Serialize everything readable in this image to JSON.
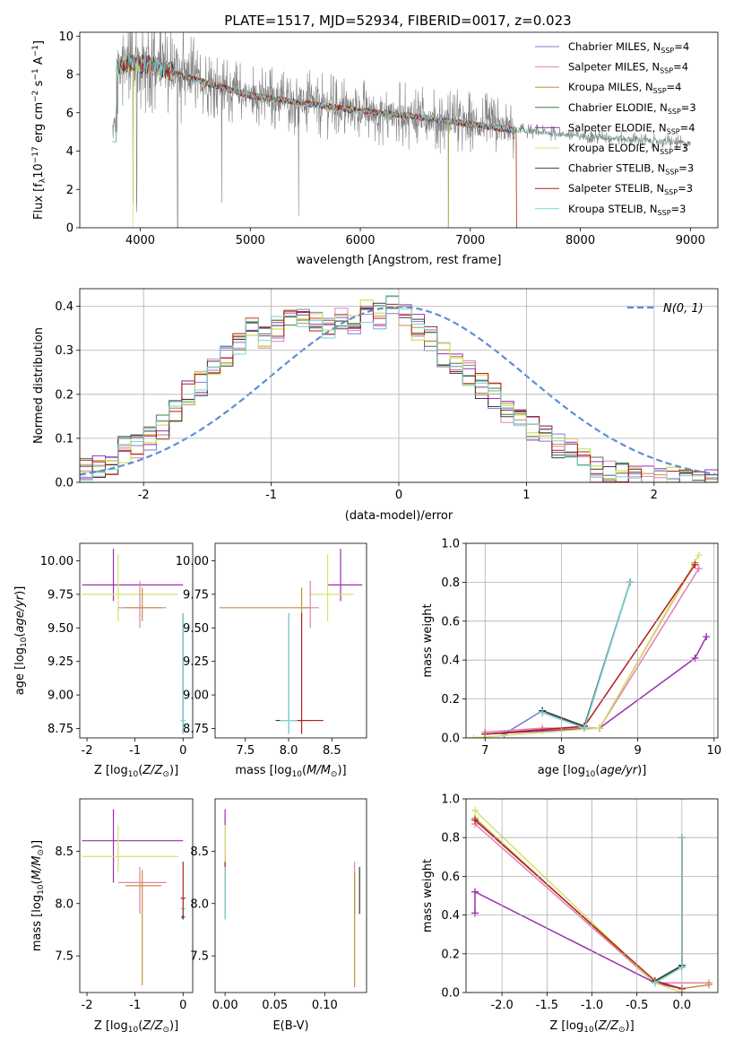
{
  "figure_title": "PLATE=1517, MJD=52934, FIBERID=0017, z=0.023",
  "legend": [
    {
      "label": "Chabrier MILES, N",
      "sub": "SSP",
      "suffix": "=4",
      "color": "#7b7fd0"
    },
    {
      "label": "Salpeter MILES, N",
      "sub": "SSP",
      "suffix": "=4",
      "color": "#e47fb3"
    },
    {
      "label": "Kroupa MILES, N",
      "sub": "SSP",
      "suffix": "=4",
      "color": "#c3923a"
    },
    {
      "label": "Chabrier ELODIE, N",
      "sub": "SSP",
      "suffix": "=3",
      "color": "#3f7f3f"
    },
    {
      "label": "Salpeter ELODIE, N",
      "sub": "SSP",
      "suffix": "=4",
      "color": "#9b2fb0"
    },
    {
      "label": "Kroupa ELODIE, N",
      "sub": "SSP",
      "suffix": "=3",
      "color": "#d6e26b"
    },
    {
      "label": "Chabrier STELIB, N",
      "sub": "SSP",
      "suffix": "=3",
      "color": "#3a3a3a"
    },
    {
      "label": "Salpeter STELIB, N",
      "sub": "SSP",
      "suffix": "=3",
      "color": "#b01f1f"
    },
    {
      "label": "Kroupa STELIB, N",
      "sub": "SSP",
      "suffix": "=3",
      "color": "#79d4d6"
    }
  ],
  "chart_data": [
    {
      "id": "spectrum",
      "type": "line",
      "xlabel": "wavelength [Angstrom, rest frame]",
      "ylabel": "Flux [f",
      "xlim": [
        3450,
        9250
      ],
      "ylim": [
        0,
        10.2
      ],
      "xticks": [
        4000,
        5000,
        6000,
        7000,
        8000,
        9000
      ],
      "yticks": [
        0,
        2,
        4,
        6,
        8,
        10
      ],
      "data_color": "#808080",
      "data_range": [
        3750,
        9000
      ],
      "model_range": [
        3750,
        7420
      ],
      "continuum": [
        [
          3750,
          8.3
        ],
        [
          3900,
          8.6
        ],
        [
          4100,
          8.5
        ],
        [
          4400,
          7.9
        ],
        [
          5000,
          6.9
        ],
        [
          5500,
          6.5
        ],
        [
          6000,
          6.1
        ],
        [
          6500,
          5.8
        ],
        [
          7000,
          5.4
        ],
        [
          7400,
          5.1
        ],
        [
          8000,
          4.8
        ],
        [
          8500,
          4.6
        ],
        [
          9000,
          4.4
        ]
      ],
      "grid": false
    },
    {
      "id": "residuals",
      "type": "histogram",
      "xlabel": "(data-model)/error",
      "ylabel": "Normed distribution",
      "xlim": [
        -2.5,
        2.5
      ],
      "ylim": [
        0,
        0.44
      ],
      "xticks": [
        -2,
        -1,
        0,
        1,
        2
      ],
      "yticks": [
        0.0,
        0.1,
        0.2,
        0.3,
        0.4
      ],
      "bin_width": 0.1,
      "bin_start": -2.5,
      "base_heights": [
        0.025,
        0.03,
        0.035,
        0.035,
        0.04,
        0.045,
        0.075,
        0.075,
        0.085,
        0.085,
        0.095,
        0.105,
        0.12,
        0.13,
        0.15,
        0.165,
        0.19,
        0.215,
        0.23,
        0.215,
        0.26,
        0.255,
        0.275,
        0.29,
        0.31,
        0.33,
        0.35,
        0.36,
        0.345,
        0.32,
        0.33,
        0.37,
        0.395,
        0.355,
        0.365,
        0.38,
        0.37,
        0.355,
        0.33,
        0.375,
        0.35,
        0.395,
        0.335,
        0.39,
        0.395,
        0.38,
        0.355,
        0.4,
        0.405,
        0.39,
        0.375,
        0.38,
        0.345,
        0.36,
        0.33,
        0.32,
        0.305,
        0.28,
        0.29,
        0.25,
        0.23,
        0.265,
        0.235,
        0.2,
        0.205,
        0.19,
        0.17,
        0.16,
        0.15,
        0.15,
        0.13,
        0.115,
        0.12,
        0.085,
        0.09,
        0.08,
        0.08,
        0.06,
        0.055,
        0.04,
        0.035,
        0.025,
        0.03,
        0.02,
        0.015,
        0.02,
        0.015,
        0.01,
        0.01,
        0.015,
        0.01,
        0.005,
        0.01,
        0.005,
        0.005,
        0.005,
        0.0,
        0.005,
        0.0,
        0.0
      ],
      "normal_curve": {
        "label": "N(0, 1)",
        "color": "#5b8ed6",
        "mu": 0,
        "sigma": 1
      },
      "grid": true
    },
    {
      "id": "age-vs-Z",
      "type": "errorbar",
      "xlabel": "Z [log",
      "ylabel": "age  [log",
      "xlim": [
        -2.15,
        0.2
      ],
      "ylim": [
        8.68,
        10.13
      ],
      "xticks": [
        -2,
        -1,
        0
      ],
      "yticks": [
        8.75,
        9.0,
        9.25,
        9.5,
        9.75,
        10.0
      ],
      "points": [
        {
          "x": -1.45,
          "y": 9.82,
          "xerr": [
            0.65,
            1.45
          ],
          "yerr": [
            0.12,
            0.27
          ],
          "color": "#9b2fb0"
        },
        {
          "x": -1.35,
          "y": 9.75,
          "xerr": [
            0.75,
            1.25
          ],
          "yerr": [
            0.2,
            0.3
          ],
          "color": "#d6e26b"
        },
        {
          "x": -0.9,
          "y": 9.65,
          "xerr": [
            0.45,
            0.55
          ],
          "yerr": [
            0.15,
            0.2
          ],
          "color": "#e47fb3"
        },
        {
          "x": -0.85,
          "y": 9.65,
          "xerr": [
            0.35,
            0.4
          ],
          "yerr": [
            0.1,
            0.15
          ],
          "color": "#c3923a"
        },
        {
          "x": 0.0,
          "y": 8.81,
          "xerr": [
            0.02,
            0.02
          ],
          "yerr": [
            0.1,
            0.8
          ],
          "color": "#3a3a3a"
        },
        {
          "x": 0.0,
          "y": 8.81,
          "xerr": [
            0.05,
            0.05
          ],
          "yerr": [
            0.1,
            0.8
          ],
          "color": "#79d4d6"
        }
      ],
      "grid": false
    },
    {
      "id": "age-vs-mass",
      "type": "errorbar",
      "xlabel": "mass [log",
      "ylabel": "",
      "xlim": [
        7.15,
        8.9
      ],
      "ylim": [
        8.68,
        10.13
      ],
      "xticks": [
        7.5,
        8.0,
        8.5
      ],
      "yticks": [
        8.75,
        9.0,
        9.25,
        9.5,
        9.75,
        10.0
      ],
      "points": [
        {
          "x": 8.6,
          "y": 9.82,
          "xerr": [
            0.15,
            0.25
          ],
          "yerr": [
            0.12,
            0.27
          ],
          "color": "#9b2fb0"
        },
        {
          "x": 8.45,
          "y": 9.75,
          "xerr": [
            0.2,
            0.3
          ],
          "yerr": [
            0.2,
            0.3
          ],
          "color": "#d6e26b"
        },
        {
          "x": 8.25,
          "y": 9.65,
          "xerr": [
            0.1,
            0.1
          ],
          "yerr": [
            0.15,
            0.2
          ],
          "color": "#e47fb3"
        },
        {
          "x": 8.15,
          "y": 9.65,
          "xerr": [
            0.95,
            0.1
          ],
          "yerr": [
            0.1,
            0.15
          ],
          "color": "#c3923a"
        },
        {
          "x": 8.0,
          "y": 8.81,
          "xerr": [
            0.15,
            0.25
          ],
          "yerr": [
            0.1,
            0.8
          ],
          "color": "#3a3a3a"
        },
        {
          "x": 8.15,
          "y": 8.81,
          "xerr": [
            0.1,
            0.25
          ],
          "yerr": [
            0.1,
            0.8
          ],
          "color": "#b01f1f"
        },
        {
          "x": 8.0,
          "y": 8.81,
          "xerr": [
            0.1,
            0.1
          ],
          "yerr": [
            0.1,
            0.8
          ],
          "color": "#79d4d6"
        }
      ],
      "grid": false
    },
    {
      "id": "massweight-vs-age",
      "type": "line",
      "xlabel": "age  [log",
      "ylabel": "mass weight",
      "xlim": [
        6.75,
        10.05
      ],
      "ylim": [
        0,
        1.0
      ],
      "xticks": [
        7,
        8,
        9,
        10
      ],
      "yticks": [
        0.0,
        0.2,
        0.4,
        0.6,
        0.8,
        1.0
      ],
      "series": [
        {
          "color": "#7b7fd0",
          "x": [
            7.25,
            7.75,
            8.3,
            8.9
          ],
          "y": [
            0.02,
            0.14,
            0.05,
            0.8
          ]
        },
        {
          "color": "#e47fb3",
          "x": [
            7.0,
            7.75,
            8.5,
            9.8
          ],
          "y": [
            0.03,
            0.05,
            0.05,
            0.87
          ]
        },
        {
          "color": "#c3923a",
          "x": [
            7.0,
            7.75,
            8.5,
            9.75
          ],
          "y": [
            0.02,
            0.04,
            0.05,
            0.9
          ]
        },
        {
          "color": "#3f7f3f",
          "x": [
            7.75,
            8.3,
            8.9
          ],
          "y": [
            0.13,
            0.06,
            0.8
          ]
        },
        {
          "color": "#9b2fb0",
          "x": [
            7.0,
            8.5,
            9.75,
            9.9
          ],
          "y": [
            0.02,
            0.05,
            0.41,
            0.52
          ]
        },
        {
          "color": "#d6e26b",
          "x": [
            6.85,
            8.5,
            9.8
          ],
          "y": [
            0.0,
            0.05,
            0.94
          ]
        },
        {
          "color": "#3a3a3a",
          "x": [
            7.75,
            8.3,
            8.9
          ],
          "y": [
            0.14,
            0.06,
            0.8
          ]
        },
        {
          "color": "#b01f1f",
          "x": [
            7.0,
            8.3,
            9.75
          ],
          "y": [
            0.02,
            0.06,
            0.89
          ]
        },
        {
          "color": "#79d4d6",
          "x": [
            7.75,
            8.3,
            8.9
          ],
          "y": [
            0.13,
            0.05,
            0.8
          ]
        }
      ],
      "grid": true
    },
    {
      "id": "mass-vs-Z",
      "type": "errorbar",
      "xlabel": "Z [log",
      "ylabel": "mass [log",
      "xlim": [
        -2.15,
        0.2
      ],
      "ylim": [
        7.15,
        9.0
      ],
      "xticks": [
        -2,
        -1,
        0
      ],
      "yticks": [
        7.5,
        8.0,
        8.5
      ],
      "points": [
        {
          "x": -1.45,
          "y": 8.6,
          "xerr": [
            0.65,
            1.45
          ],
          "yerr": [
            0.4,
            0.3
          ],
          "color": "#9b2fb0"
        },
        {
          "x": -1.35,
          "y": 8.45,
          "xerr": [
            0.75,
            1.25
          ],
          "yerr": [
            0.15,
            0.3
          ],
          "color": "#d6e26b"
        },
        {
          "x": -0.9,
          "y": 8.2,
          "xerr": [
            0.45,
            0.55
          ],
          "yerr": [
            0.3,
            0.15
          ],
          "color": "#e47fb3"
        },
        {
          "x": -0.85,
          "y": 8.17,
          "xerr": [
            0.35,
            0.4
          ],
          "yerr": [
            0.95,
            0.15
          ],
          "color": "#c3923a"
        },
        {
          "x": 0.0,
          "y": 7.95,
          "xerr": [
            0.05,
            0.05
          ],
          "yerr": [
            0.1,
            0.1
          ],
          "color": "#79d4d6"
        },
        {
          "x": 0.0,
          "y": 8.05,
          "xerr": [
            0.05,
            0.05
          ],
          "yerr": [
            0.2,
            0.35
          ],
          "color": "#b01f1f"
        },
        {
          "x": 0.0,
          "y": 7.87,
          "xerr": [
            0.04,
            0.04
          ],
          "yerr": [
            0.02,
            0.02
          ],
          "color": "#3a3a3a"
        }
      ],
      "grid": false
    },
    {
      "id": "mass-vs-EBV",
      "type": "errorbar",
      "xlabel": "E(B-V)",
      "ylabel": "",
      "xlim": [
        -0.01,
        0.142
      ],
      "ylim": [
        7.15,
        9.0
      ],
      "xticks": [
        0.0,
        0.05,
        0.1
      ],
      "yticks": [
        7.5,
        8.0,
        8.5
      ],
      "points": [
        {
          "x": 0.0,
          "y": 8.6,
          "xerr": [
            0,
            0
          ],
          "yerr": [
            0.4,
            0.3
          ],
          "color": "#9b2fb0"
        },
        {
          "x": 0.0,
          "y": 8.45,
          "xerr": [
            0,
            0
          ],
          "yerr": [
            0.15,
            0.3
          ],
          "color": "#d6e26b"
        },
        {
          "x": 0.0,
          "y": 8.05,
          "xerr": [
            0,
            0
          ],
          "yerr": [
            0.2,
            0.35
          ],
          "color": "#b01f1f"
        },
        {
          "x": 0.0,
          "y": 7.95,
          "xerr": [
            0,
            0
          ],
          "yerr": [
            0.1,
            0.4
          ],
          "color": "#79d4d6"
        },
        {
          "x": 0.13,
          "y": 8.2,
          "xerr": [
            0,
            0
          ],
          "yerr": [
            0.3,
            0.2
          ],
          "color": "#e47fb3"
        },
        {
          "x": 0.13,
          "y": 7.8,
          "xerr": [
            0,
            0
          ],
          "yerr": [
            0.6,
            0.5
          ],
          "color": "#c3923a"
        },
        {
          "x": 0.135,
          "y": 8.15,
          "xerr": [
            0,
            0
          ],
          "yerr": [
            0.25,
            0.2
          ],
          "color": "#3a3a3a"
        }
      ],
      "grid": false
    },
    {
      "id": "massweight-vs-Z",
      "type": "line",
      "xlabel": "Z [log",
      "ylabel": "mass weight",
      "xlim": [
        -2.4,
        0.4
      ],
      "ylim": [
        0,
        1.0
      ],
      "xticks": [
        -2.0,
        -1.5,
        -1.0,
        -0.5,
        0.0
      ],
      "yticks": [
        0.0,
        0.2,
        0.4,
        0.6,
        0.8,
        1.0
      ],
      "series": [
        {
          "color": "#7b7fd0",
          "x": [
            -0.3,
            0.0,
            0.0
          ],
          "y": [
            0.05,
            0.14,
            0.8
          ]
        },
        {
          "color": "#e47fb3",
          "x": [
            -2.3,
            -0.3,
            0.3
          ],
          "y": [
            0.87,
            0.05,
            0.05
          ]
        },
        {
          "color": "#c3923a",
          "x": [
            -2.3,
            -0.3,
            0.0,
            0.3
          ],
          "y": [
            0.9,
            0.05,
            0.02,
            0.04
          ]
        },
        {
          "color": "#3f7f3f",
          "x": [
            -0.3,
            0.0,
            0.0
          ],
          "y": [
            0.06,
            0.13,
            0.8
          ]
        },
        {
          "color": "#9b2fb0",
          "x": [
            -2.3,
            -2.3,
            -0.3,
            0.0
          ],
          "y": [
            0.41,
            0.52,
            0.05,
            0.02
          ]
        },
        {
          "color": "#d6e26b",
          "x": [
            -2.3,
            -0.3,
            0.0
          ],
          "y": [
            0.94,
            0.05,
            0.0
          ]
        },
        {
          "color": "#3a3a3a",
          "x": [
            -0.3,
            0.0,
            0.0
          ],
          "y": [
            0.06,
            0.14,
            0.8
          ]
        },
        {
          "color": "#b01f1f",
          "x": [
            -2.3,
            -0.3,
            0.0
          ],
          "y": [
            0.89,
            0.06,
            0.02
          ]
        },
        {
          "color": "#79d4d6",
          "x": [
            -0.3,
            0.0,
            0.0
          ],
          "y": [
            0.05,
            0.13,
            0.8
          ]
        }
      ],
      "grid": true
    }
  ]
}
